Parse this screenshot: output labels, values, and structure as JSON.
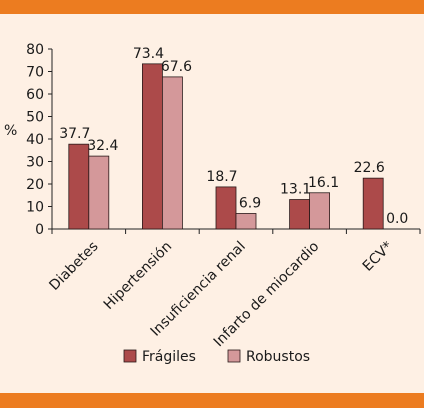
{
  "chart_data": {
    "type": "bar",
    "ylabel": "%",
    "xlabel": "",
    "ylim": [
      0,
      80
    ],
    "yticks": [
      0,
      10,
      20,
      30,
      40,
      50,
      60,
      70,
      80
    ],
    "categories": [
      "Diabetes",
      "Hipertensión",
      "Insuficiencia renal",
      "Infarto de miocardio",
      "ECV*"
    ],
    "series": [
      {
        "name": "Frágiles",
        "color": "#ac4a4a",
        "values": [
          37.7,
          73.4,
          18.7,
          13.1,
          22.6
        ],
        "labels": [
          "37.7",
          "73.4",
          "18.7",
          "13.1",
          "22.6"
        ]
      },
      {
        "name": "Robustos",
        "color": "#d4989a",
        "values": [
          32.4,
          67.6,
          6.9,
          16.1,
          0.0
        ],
        "labels": [
          "32.4",
          "67.6",
          "6.9",
          "16.1",
          "0.0"
        ]
      }
    ],
    "legend_position": "bottom",
    "grid": false,
    "colors": {
      "band": "#ec7c20",
      "background": "#fef0e4"
    }
  }
}
